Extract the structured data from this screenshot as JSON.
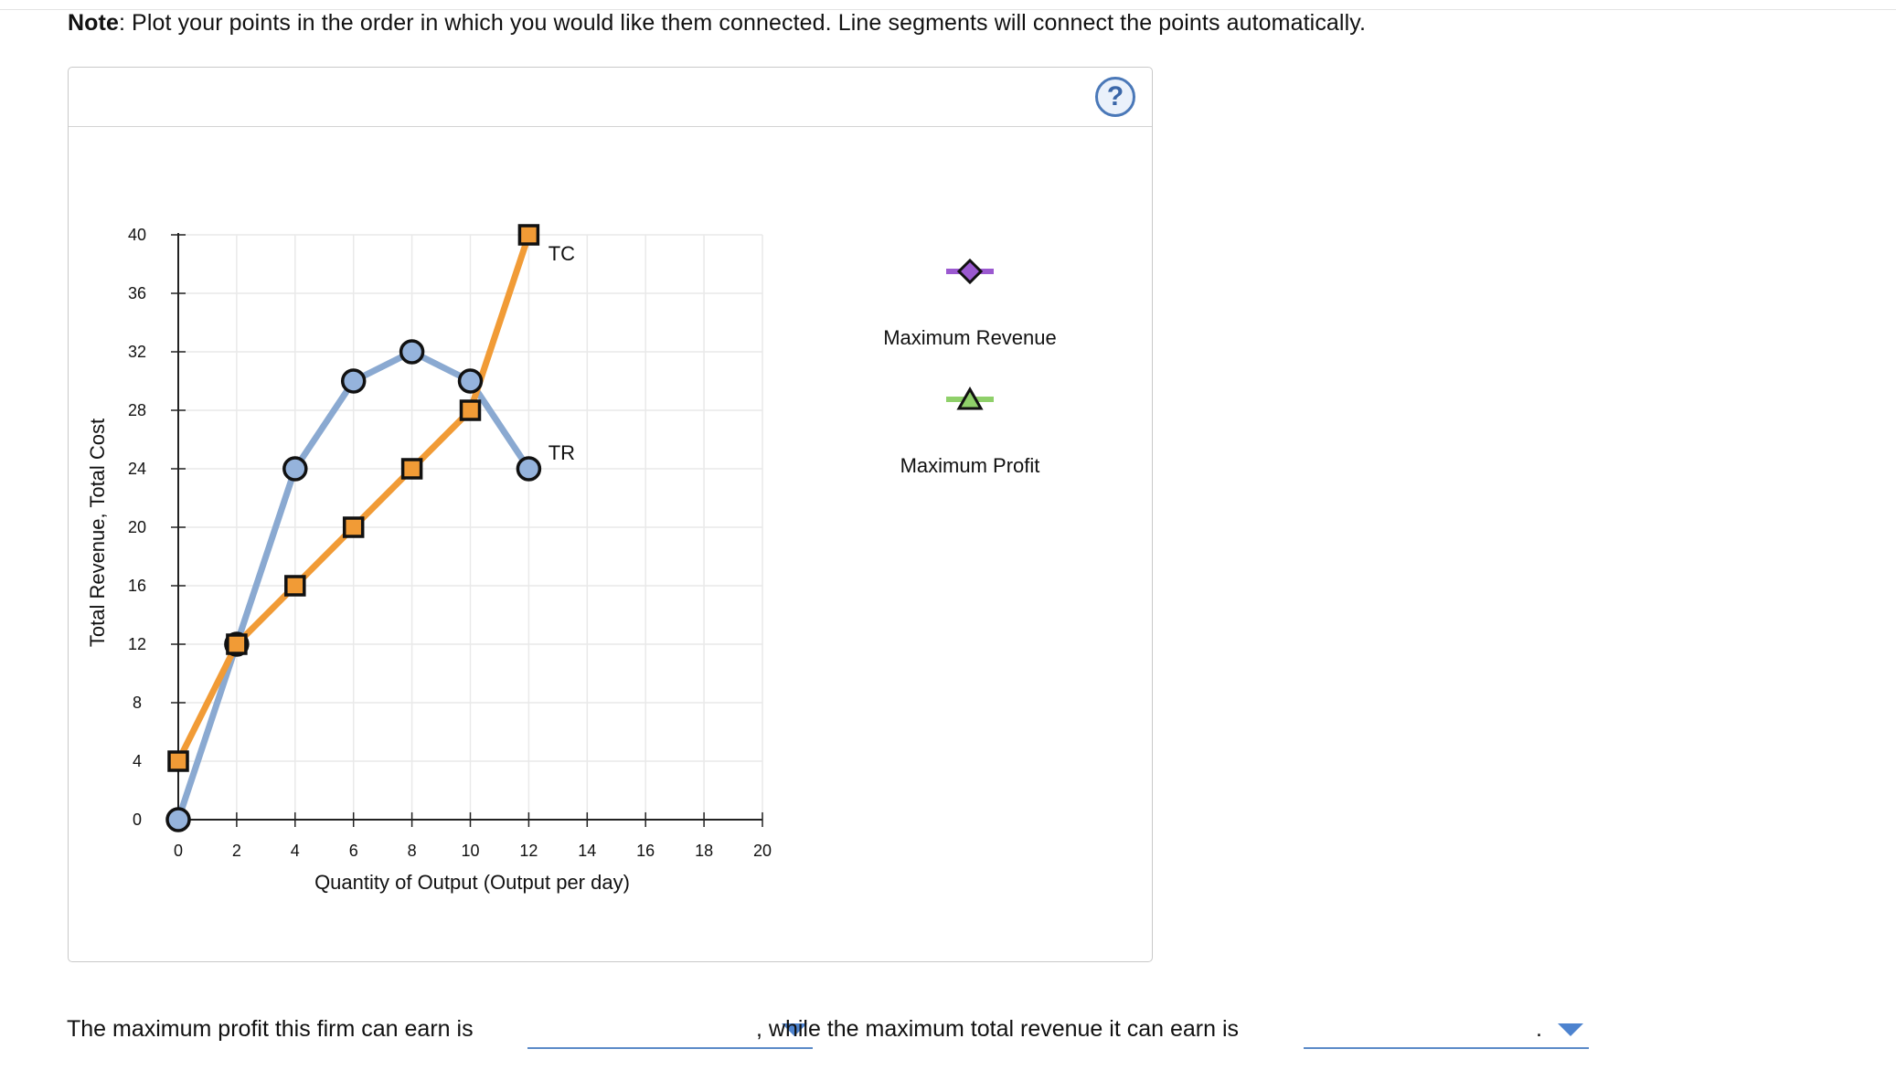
{
  "note": {
    "label": "Note",
    "text": ": Plot your points in the order in which you would like them connected. Line segments will connect the points automatically."
  },
  "help": {
    "symbol": "?"
  },
  "colors": {
    "tc": "#f19b36",
    "tr": "#8aa9d1",
    "tr_fill": "#95b3dc",
    "tc_fill": "#f19b36",
    "max_revenue": "#9b59d0",
    "max_profit": "#8fd06a",
    "grid": "#e9e9e9",
    "axis": "#222222"
  },
  "chart_data": {
    "type": "line",
    "xlabel": "Quantity of Output (Output per day)",
    "ylabel": "Total Revenue, Total Cost",
    "xlim": [
      0,
      20
    ],
    "ylim": [
      0,
      40
    ],
    "x_ticks": [
      0,
      2,
      4,
      6,
      8,
      10,
      12,
      14,
      16,
      18,
      20
    ],
    "y_ticks": [
      0,
      4,
      8,
      12,
      16,
      20,
      24,
      28,
      32,
      36,
      40
    ],
    "grid": true,
    "series": [
      {
        "name": "TC",
        "label": "TC",
        "marker": "square",
        "points": [
          [
            0,
            4
          ],
          [
            2,
            12
          ],
          [
            4,
            16
          ],
          [
            6,
            20
          ],
          [
            8,
            24
          ],
          [
            10,
            28
          ],
          [
            12,
            40
          ]
        ]
      },
      {
        "name": "TR",
        "label": "TR",
        "marker": "circle",
        "points": [
          [
            0,
            0
          ],
          [
            2,
            12
          ],
          [
            4,
            24
          ],
          [
            6,
            30
          ],
          [
            8,
            32
          ],
          [
            10,
            30
          ],
          [
            12,
            24
          ]
        ]
      }
    ],
    "legend": [
      {
        "name": "Maximum Revenue",
        "marker": "diamond",
        "color": "#9b59d0"
      },
      {
        "name": "Maximum Profit",
        "marker": "triangle",
        "color": "#8fd06a"
      }
    ]
  },
  "answer": {
    "text1": "The maximum profit this firm can earn is",
    "dropdown1_value": "",
    "text2": ", while the maximum total revenue it can earn is",
    "dropdown2_value": "",
    "text3": "."
  }
}
